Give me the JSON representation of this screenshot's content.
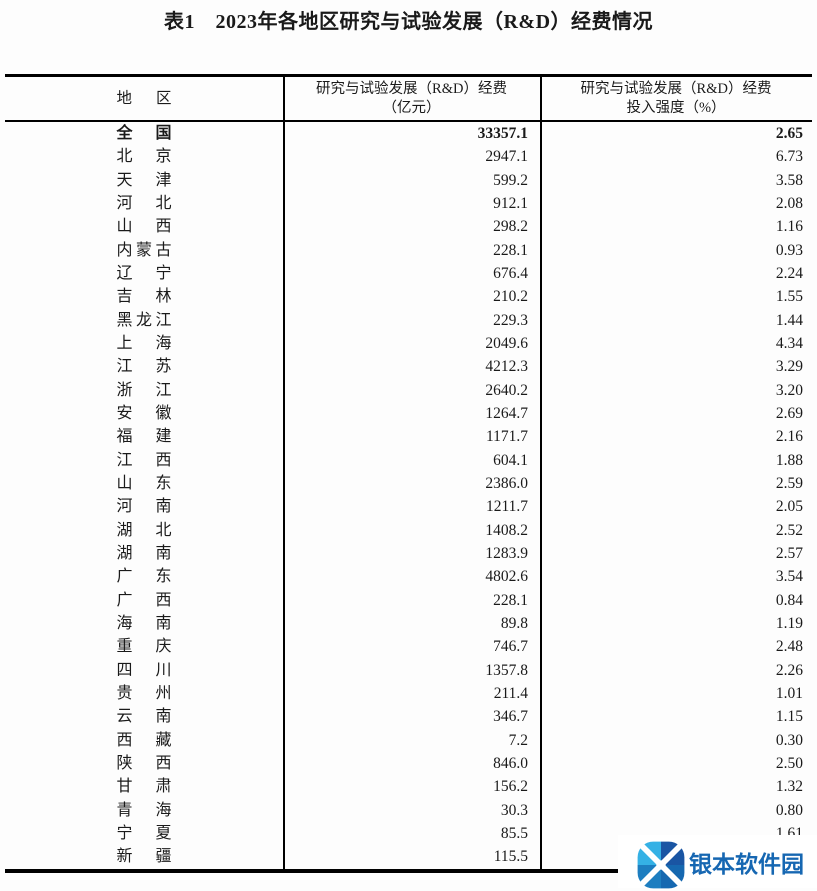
{
  "title": "表1　2023年各地区研究与试验发展（R&D）经费情况",
  "table": {
    "headers": {
      "region": "地区",
      "funds_line1": "研究与试验发展（R&D）经费",
      "funds_line2": "（亿元）",
      "intensity_line1": "研究与试验发展（R&D）经费",
      "intensity_line2": "投入强度（%）"
    },
    "rows": [
      {
        "region": "全国",
        "funds": "33357.1",
        "intensity": "2.65",
        "bold": true
      },
      {
        "region": "北京",
        "funds": "2947.1",
        "intensity": "6.73"
      },
      {
        "region": "天津",
        "funds": "599.2",
        "intensity": "3.58"
      },
      {
        "region": "河北",
        "funds": "912.1",
        "intensity": "2.08"
      },
      {
        "region": "山西",
        "funds": "298.2",
        "intensity": "1.16"
      },
      {
        "region": "内蒙古",
        "funds": "228.1",
        "intensity": "0.93"
      },
      {
        "region": "辽宁",
        "funds": "676.4",
        "intensity": "2.24"
      },
      {
        "region": "吉林",
        "funds": "210.2",
        "intensity": "1.55"
      },
      {
        "region": "黑龙江",
        "funds": "229.3",
        "intensity": "1.44"
      },
      {
        "region": "上海",
        "funds": "2049.6",
        "intensity": "4.34"
      },
      {
        "region": "江苏",
        "funds": "4212.3",
        "intensity": "3.29"
      },
      {
        "region": "浙江",
        "funds": "2640.2",
        "intensity": "3.20"
      },
      {
        "region": "安徽",
        "funds": "1264.7",
        "intensity": "2.69"
      },
      {
        "region": "福建",
        "funds": "1171.7",
        "intensity": "2.16"
      },
      {
        "region": "江西",
        "funds": "604.1",
        "intensity": "1.88"
      },
      {
        "region": "山东",
        "funds": "2386.0",
        "intensity": "2.59"
      },
      {
        "region": "河南",
        "funds": "1211.7",
        "intensity": "2.05"
      },
      {
        "region": "湖北",
        "funds": "1408.2",
        "intensity": "2.52"
      },
      {
        "region": "湖南",
        "funds": "1283.9",
        "intensity": "2.57"
      },
      {
        "region": "广东",
        "funds": "4802.6",
        "intensity": "3.54"
      },
      {
        "region": "广西",
        "funds": "228.1",
        "intensity": "0.84"
      },
      {
        "region": "海南",
        "funds": "89.8",
        "intensity": "1.19"
      },
      {
        "region": "重庆",
        "funds": "746.7",
        "intensity": "2.48"
      },
      {
        "region": "四川",
        "funds": "1357.8",
        "intensity": "2.26"
      },
      {
        "region": "贵州",
        "funds": "211.4",
        "intensity": "1.01"
      },
      {
        "region": "云南",
        "funds": "346.7",
        "intensity": "1.15"
      },
      {
        "region": "西藏",
        "funds": "7.2",
        "intensity": "0.30"
      },
      {
        "region": "陕西",
        "funds": "846.0",
        "intensity": "2.50"
      },
      {
        "region": "甘肃",
        "funds": "156.2",
        "intensity": "1.32"
      },
      {
        "region": "青海",
        "funds": "30.3",
        "intensity": "0.80"
      },
      {
        "region": "宁夏",
        "funds": "85.5",
        "intensity": "1.61"
      },
      {
        "region": "新疆",
        "funds": "115.5",
        "intensity": ""
      }
    ]
  },
  "watermark": {
    "text": "银本软件园",
    "text_color": "#1667b2",
    "logo_colors": {
      "top_left": "#35b1e5",
      "top_right": "#1a55a3",
      "bottom_right": "#1668b0",
      "bottom_left": "#1d7ec0"
    }
  }
}
